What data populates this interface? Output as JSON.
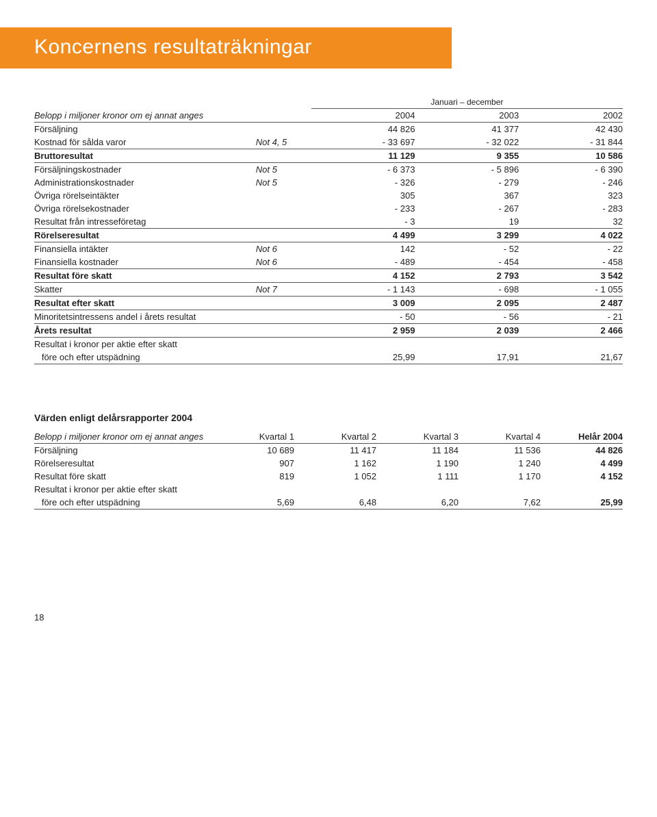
{
  "title": "Koncernens resultaträkningar",
  "period_header": "Januari – december",
  "caption": "Belopp i miljoner kronor om ej annat anges",
  "years": [
    "2004",
    "2003",
    "2002"
  ],
  "rows": [
    {
      "label": "Försäljning",
      "note": "",
      "v": [
        "44 826",
        "41 377",
        "42 430"
      ],
      "bold": false
    },
    {
      "label": "Kostnad för sålda varor",
      "note": "Not 4, 5",
      "v": [
        "- 33 697",
        "- 32 022",
        "- 31 844"
      ],
      "bold": false,
      "rule_after": true
    },
    {
      "label": "Bruttoresultat",
      "note": "",
      "v": [
        "11 129",
        "9 355",
        "10 586"
      ],
      "bold": true,
      "gap_before": true,
      "rule_after": true
    },
    {
      "label": "Försäljningskostnader",
      "note": "Not 5",
      "v": [
        "- 6 373",
        "- 5 896",
        "- 6 390"
      ],
      "gap_before": true
    },
    {
      "label": "Administrationskostnader",
      "note": "Not 5",
      "v": [
        "- 326",
        "- 279",
        "- 246"
      ]
    },
    {
      "label": "Övriga rörelseintäkter",
      "note": "",
      "v": [
        "305",
        "367",
        "323"
      ]
    },
    {
      "label": "Övriga rörelsekostnader",
      "note": "",
      "v": [
        "- 233",
        "- 267",
        "- 283"
      ]
    },
    {
      "label": "Resultat från intresseföretag",
      "note": "",
      "v": [
        "- 3",
        "19",
        "32"
      ],
      "rule_after": true
    },
    {
      "label": "Rörelseresultat",
      "note": "",
      "v": [
        "4 499",
        "3 299",
        "4 022"
      ],
      "bold": true,
      "gap_before": true,
      "rule_after": true
    },
    {
      "label": "Finansiella intäkter",
      "note": "Not 6",
      "v": [
        "142",
        "- 52",
        "- 22"
      ],
      "gap_before": true
    },
    {
      "label": "Finansiella kostnader",
      "note": "Not 6",
      "v": [
        "- 489",
        "- 454",
        "- 458"
      ],
      "rule_after": true
    },
    {
      "label": "Resultat före skatt",
      "note": "",
      "v": [
        "4 152",
        "2 793",
        "3 542"
      ],
      "bold": true,
      "gap_before": true,
      "rule_after": true
    },
    {
      "label": "Skatter",
      "note": "Not 7",
      "v": [
        "- 1 143",
        "- 698",
        "- 1 055"
      ],
      "gap_before": true,
      "rule_after": true
    },
    {
      "label": "Resultat efter skatt",
      "note": "",
      "v": [
        "3 009",
        "2 095",
        "2 487"
      ],
      "bold": true,
      "gap_before": true,
      "rule_after": true
    },
    {
      "label": "Minoritetsintressens andel i årets resultat",
      "note": "",
      "v": [
        "- 50",
        "- 56",
        "- 21"
      ],
      "gap_before": true,
      "rule_after": true
    },
    {
      "label": "Årets resultat",
      "note": "",
      "v": [
        "2 959",
        "2 039",
        "2 466"
      ],
      "bold": true,
      "gap_before": true,
      "rule_after": true
    },
    {
      "label": "Resultat i kronor per aktie efter skatt",
      "note": "",
      "v": [
        "",
        "",
        ""
      ],
      "gap_before": true
    },
    {
      "label": "   före och efter utspädning",
      "note": "",
      "v": [
        "25,99",
        "17,91",
        "21,67"
      ],
      "rule_after": true
    }
  ],
  "quarterly": {
    "title": "Värden enligt delårsrapporter 2004",
    "caption": "Belopp i miljoner kronor om ej annat anges",
    "headers": [
      "Kvartal 1",
      "Kvartal 2",
      "Kvartal 3",
      "Kvartal 4",
      "Helår 2004"
    ],
    "rows": [
      {
        "label": "Försäljning",
        "v": [
          "10 689",
          "11 417",
          "11 184",
          "11 536",
          "44 826"
        ]
      },
      {
        "label": "Rörelseresultat",
        "v": [
          "907",
          "1 162",
          "1 190",
          "1 240",
          "4 499"
        ]
      },
      {
        "label": "Resultat före skatt",
        "v": [
          "819",
          "1 052",
          "1 111",
          "1 170",
          "4 152"
        ]
      },
      {
        "label": "Resultat i kronor per aktie efter skatt",
        "v": [
          "",
          "",
          "",
          "",
          ""
        ]
      },
      {
        "label": "   före och efter utspädning",
        "v": [
          "5,69",
          "6,48",
          "6,20",
          "7,62",
          "25,99"
        ],
        "rule_after": true
      }
    ]
  },
  "page_number": "18"
}
